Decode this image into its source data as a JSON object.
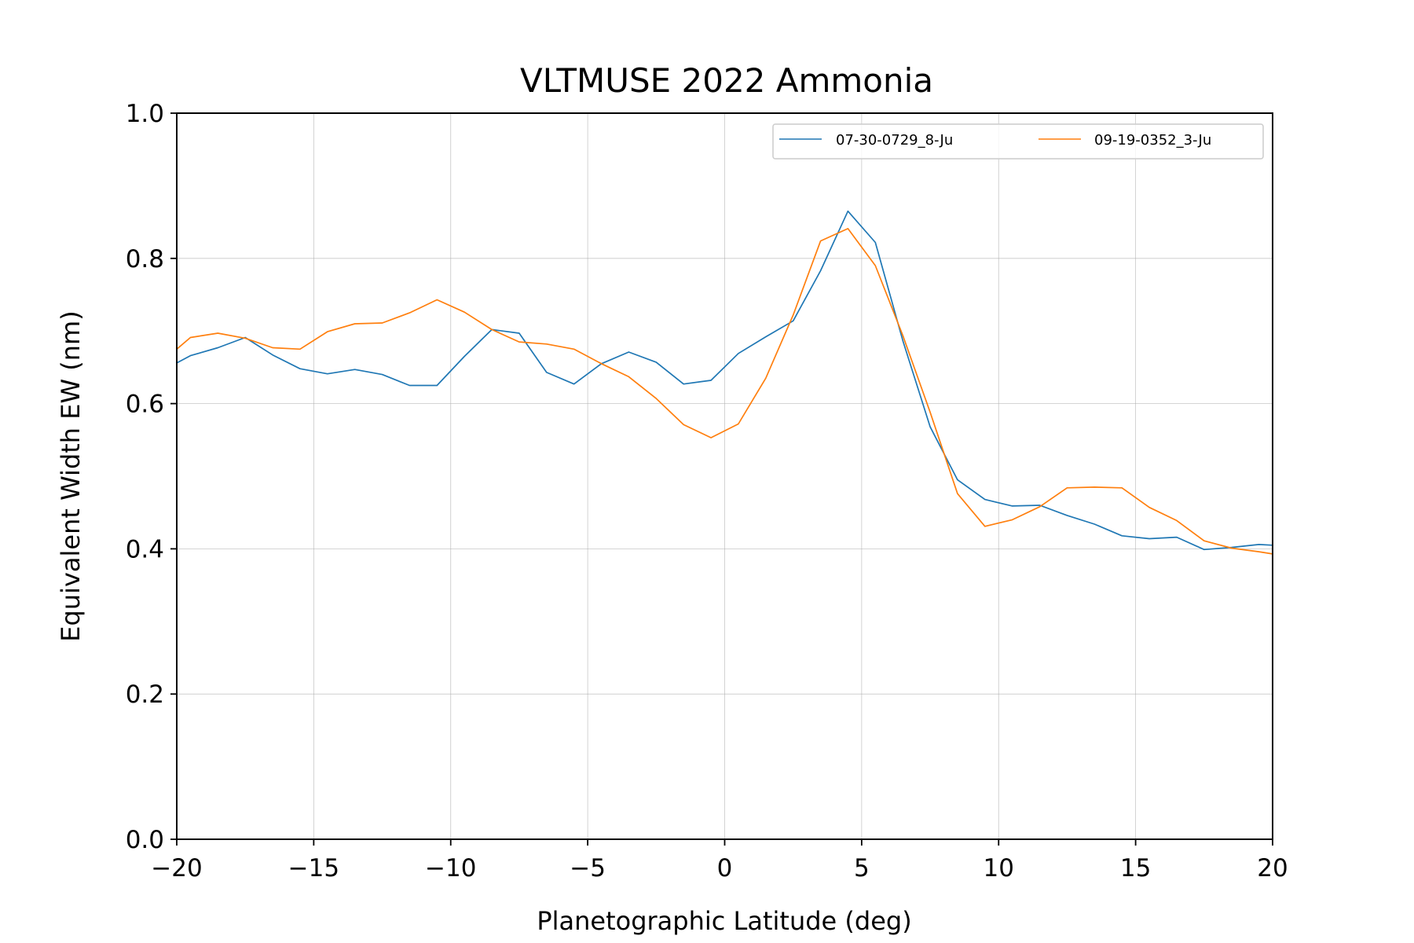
{
  "chart_data": {
    "type": "line",
    "title": "VLTMUSE 2022 Ammonia",
    "xlabel": "Planetographic Latitude (deg)",
    "ylabel": "Equivalent Width EW (nm)",
    "xlim": [
      -20,
      20
    ],
    "ylim": [
      0.0,
      1.0
    ],
    "xticks": [
      -20,
      -15,
      -10,
      -5,
      0,
      5,
      10,
      15,
      20
    ],
    "xtick_labels": [
      "−20",
      "−15",
      "−10",
      "−5",
      "0",
      "5",
      "10",
      "15",
      "20"
    ],
    "yticks": [
      0.0,
      0.2,
      0.4,
      0.6,
      0.8,
      1.0
    ],
    "ytick_labels": [
      "0.0",
      "0.2",
      "0.4",
      "0.6",
      "0.8",
      "1.0"
    ],
    "grid": true,
    "legend_position": "top-right",
    "legend_columns": 2,
    "series": [
      {
        "name": "07-30-0729_8-Ju",
        "color": "#1f77b4",
        "x": [
          -20,
          -19.5,
          -18.5,
          -17.5,
          -16.5,
          -15.5,
          -14.5,
          -13.5,
          -12.5,
          -11.5,
          -10.5,
          -9.5,
          -8.5,
          -7.5,
          -6.5,
          -5.5,
          -4.5,
          -3.5,
          -2.5,
          -1.5,
          -0.5,
          0.5,
          1.5,
          2.5,
          3.5,
          4.5,
          5.5,
          6.5,
          7.5,
          8.5,
          9.5,
          10.5,
          11.5,
          12.5,
          13.5,
          14.5,
          15.5,
          16.5,
          17.5,
          18.5,
          19.5,
          20
        ],
        "y": [
          0.656,
          0.666,
          0.677,
          0.691,
          0.667,
          0.648,
          0.641,
          0.647,
          0.64,
          0.625,
          0.625,
          0.665,
          0.702,
          0.697,
          0.643,
          0.627,
          0.655,
          0.671,
          0.657,
          0.627,
          0.632,
          0.669,
          0.692,
          0.714,
          0.783,
          0.865,
          0.822,
          0.687,
          0.568,
          0.495,
          0.468,
          0.459,
          0.46,
          0.446,
          0.434,
          0.418,
          0.414,
          0.416,
          0.399,
          0.402,
          0.406,
          0.405
        ]
      },
      {
        "name": "09-19-0352_3-Ju",
        "color": "#ff7f0e",
        "x": [
          -20,
          -19.5,
          -18.5,
          -17.5,
          -16.5,
          -15.5,
          -14.5,
          -13.5,
          -12.5,
          -11.5,
          -10.5,
          -9.5,
          -8.5,
          -7.5,
          -6.5,
          -5.5,
          -4.5,
          -3.5,
          -2.5,
          -1.5,
          -0.5,
          0.5,
          1.5,
          2.5,
          3.5,
          4.5,
          5.5,
          6.5,
          7.5,
          8.5,
          9.5,
          10.5,
          11.5,
          12.5,
          13.5,
          14.5,
          15.5,
          16.5,
          17.5,
          18.5,
          19.5,
          20
        ],
        "y": [
          0.675,
          0.691,
          0.697,
          0.69,
          0.677,
          0.675,
          0.699,
          0.71,
          0.711,
          0.725,
          0.743,
          0.726,
          0.702,
          0.685,
          0.682,
          0.675,
          0.655,
          0.637,
          0.607,
          0.571,
          0.553,
          0.572,
          0.635,
          0.722,
          0.824,
          0.841,
          0.79,
          0.694,
          0.588,
          0.476,
          0.431,
          0.44,
          0.458,
          0.484,
          0.485,
          0.484,
          0.457,
          0.439,
          0.411,
          0.401,
          0.396,
          0.393
        ]
      }
    ]
  }
}
